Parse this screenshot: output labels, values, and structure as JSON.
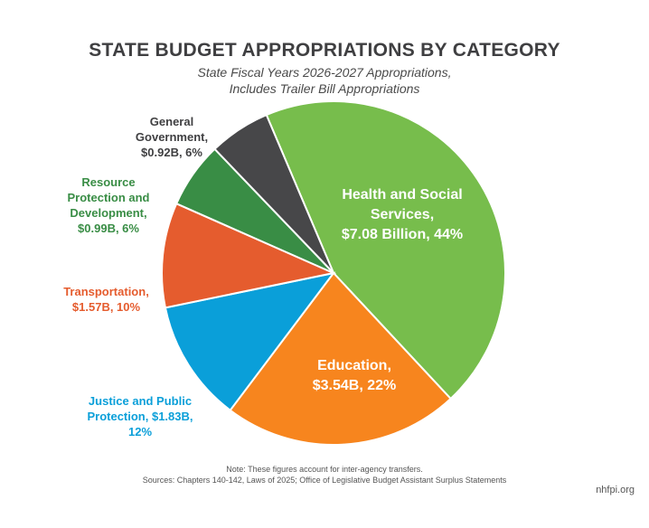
{
  "title": "STATE BUDGET APPROPRIATIONS BY CATEGORY",
  "subtitle_line1": "State Fiscal Years 2026-2027 Appropriations,",
  "subtitle_line2": "Includes Trailer Bill Appropriations",
  "chart_data": {
    "type": "pie",
    "unit": "Billion $",
    "slices": [
      {
        "category": "Health and Social Services",
        "value": 7.08,
        "percent": 44,
        "color": "#77bd4c",
        "label_lines": [
          "Health and Social",
          "Services,",
          "$7.08 Billion, 44%"
        ]
      },
      {
        "category": "Education",
        "value": 3.54,
        "percent": 22,
        "color": "#f7851e",
        "label_lines": [
          "Education,",
          "$3.54B, 22%"
        ]
      },
      {
        "category": "Justice and Public Protection",
        "value": 1.83,
        "percent": 12,
        "color": "#0a9fd9",
        "label_lines": [
          "Justice and Public",
          "Protection, $1.83B,",
          "12%"
        ]
      },
      {
        "category": "Transportation",
        "value": 1.57,
        "percent": 10,
        "color": "#e55c2e",
        "label_lines": [
          "Transportation,",
          "$1.57B, 10%"
        ]
      },
      {
        "category": "Resource Protection and Development",
        "value": 0.99,
        "percent": 6,
        "color": "#398d45",
        "label_lines": [
          "Resource",
          "Protection and",
          "Development,",
          "$0.99B, 6%"
        ]
      },
      {
        "category": "General Government",
        "value": 0.92,
        "percent": 6,
        "color": "#474749",
        "label_lines": [
          "General",
          "Government,",
          "$0.92B, 6%"
        ]
      }
    ]
  },
  "label_colors": {
    "General Government": "#3f3f41",
    "Resource Protection and Development": "#398d45",
    "Transportation": "#e55c2e",
    "Justice and Public Protection": "#0a9fd9"
  },
  "note_line1": "Note: These figures account for inter-agency transfers.",
  "note_line2": "Sources: Chapters 140-142, Laws of 2025; Office of Legislative Budget Assistant Surplus Statements",
  "brand": "nhfpi.org"
}
